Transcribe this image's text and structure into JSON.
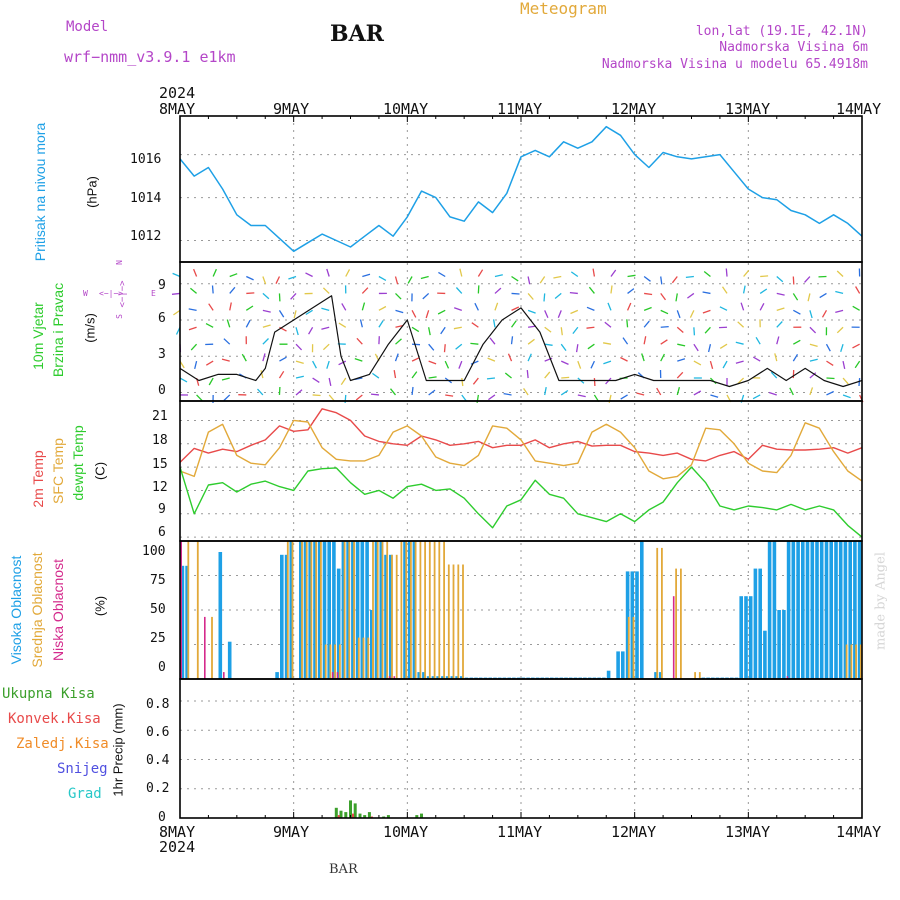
{
  "header": {
    "model_label": "Model",
    "model_name": "wrf−nmm_v3.9.1  e1km",
    "station": "BAR",
    "product": "Meteogram",
    "coords": "lon,lat (19.1E, 42.1N)",
    "elevation": "Nadmorska Visina 6m",
    "model_elevation": "Nadmorska Visina u modelu 65.4918m",
    "footer_station": "BAR",
    "credit": "made by Angel"
  },
  "time_axis": {
    "year": "2024",
    "days": [
      "8MAY",
      "9MAY",
      "10MAY",
      "11MAY",
      "12MAY",
      "13MAY",
      "14MAY"
    ]
  },
  "colors": {
    "pressure": "#1ea0e6",
    "temp2m": "#e84a4a",
    "sfc_temp": "#e2a93a",
    "dewpoint": "#2ecc2e",
    "cloud_high": "#1ea0e6",
    "cloud_mid": "#e2a93a",
    "cloud_low": "#d42a8c",
    "precip_total": "#3ca02c",
    "precip_conv": "#e84a4a",
    "precip_frozen": "#f08c28",
    "snow": "#5050e0",
    "graupel": "#28c8c8",
    "wind_label": "#2ecc2e",
    "compass": "#b446c8",
    "header_purple": "#b446c8",
    "header_orange": "#e2a93a"
  },
  "panels": {
    "pressure": {
      "label": "Pritisak na nivou mora",
      "unit": "(hPa)",
      "ticks": [
        "1012",
        "1014",
        "1016"
      ]
    },
    "wind": {
      "label_line1": "10m Vjetar",
      "label_line2": "Brzina i Pravac",
      "unit": "(m/s)",
      "ticks": [
        "0",
        "3",
        "6",
        "9"
      ],
      "compass_n": "N",
      "compass_arrow": "<−|−>",
      "compass_w": "W",
      "compass_e": "E",
      "compass_s": "S"
    },
    "temperature": {
      "label_2m": "2m Temp",
      "label_sfc": "SFC Temp",
      "label_dew": "dewpt Temp",
      "unit": "(C)",
      "ticks": [
        "6",
        "9",
        "12",
        "15",
        "18",
        "21"
      ]
    },
    "clouds": {
      "label_high": "Visoka Oblacnost",
      "label_mid": "Srednja Oblacnost",
      "label_low": "Niska Oblacnost",
      "unit": "(%)",
      "ticks": [
        "0",
        "25",
        "50",
        "75",
        "100"
      ]
    },
    "precip": {
      "legend": [
        "Ukupna Kisa",
        "Konvek.Kisa",
        "Zaledj.Kisa",
        "Snijeg",
        "Grad"
      ],
      "unit": "1hr Precip (mm)",
      "ticks": [
        "0",
        "0.2",
        "0.4",
        "0.6",
        "0.8"
      ]
    }
  },
  "chart_data": {
    "type": "line",
    "x_unit": "hours since 8MAY 00Z",
    "x_range": [
      0,
      144
    ],
    "pressure": {
      "ylim": [
        1011,
        1017.8
      ],
      "x": [
        0,
        3,
        6,
        9,
        12,
        15,
        18,
        21,
        24,
        27,
        30,
        33,
        36,
        39,
        42,
        45,
        48,
        51,
        54,
        57,
        60,
        63,
        66,
        69,
        72,
        75,
        78,
        81,
        84,
        87,
        90,
        93,
        96,
        99,
        102,
        105,
        108,
        111,
        114,
        117,
        120,
        123,
        126,
        129,
        132,
        135,
        138,
        141,
        144
      ],
      "values": [
        1015.8,
        1015.0,
        1015.4,
        1014.4,
        1013.2,
        1012.7,
        1012.7,
        1012.1,
        1011.5,
        1011.9,
        1012.3,
        1012.0,
        1011.7,
        1012.2,
        1012.7,
        1012.2,
        1013.1,
        1014.3,
        1014.0,
        1013.1,
        1012.9,
        1013.8,
        1013.3,
        1014.2,
        1015.9,
        1016.2,
        1015.9,
        1016.6,
        1016.3,
        1016.6,
        1017.3,
        1016.9,
        1016.0,
        1015.4,
        1016.1,
        1015.9,
        1015.8,
        1015.9,
        1016.0,
        1015.2,
        1014.4,
        1014.0,
        1013.9,
        1013.4,
        1013.2,
        1012.8,
        1013.2,
        1012.8,
        1012.2
      ]
    },
    "wind": {
      "ylim": [
        -0.7,
        10.8
      ],
      "x": [
        0,
        4,
        8,
        12,
        16,
        18,
        20,
        24,
        28,
        32,
        34,
        36,
        40,
        44,
        48,
        52,
        56,
        60,
        64,
        68,
        72,
        76,
        80,
        84,
        88,
        92,
        96,
        100,
        104,
        108,
        112,
        116,
        120,
        124,
        128,
        132,
        136,
        140,
        144
      ],
      "speed": [
        2,
        1,
        1.5,
        1.5,
        1,
        2,
        5,
        6,
        7,
        8,
        3,
        1,
        1.5,
        4,
        6,
        1,
        1,
        1,
        4,
        6,
        7,
        5,
        1,
        1,
        1,
        1,
        1.5,
        1,
        1,
        1,
        1,
        0.5,
        1,
        2,
        1,
        2,
        1,
        0.5,
        1
      ]
    },
    "temperature": {
      "ylim": [
        5.5,
        23.5
      ],
      "x": [
        0,
        3,
        6,
        9,
        12,
        15,
        18,
        21,
        24,
        27,
        30,
        33,
        36,
        39,
        42,
        45,
        48,
        51,
        54,
        57,
        60,
        63,
        66,
        69,
        72,
        75,
        78,
        81,
        84,
        87,
        90,
        93,
        96,
        99,
        102,
        105,
        108,
        111,
        114,
        117,
        120,
        123,
        126,
        129,
        132,
        135,
        138,
        141,
        144
      ],
      "t2m": [
        15.6,
        17.4,
        16.8,
        17.3,
        17.0,
        17.8,
        18.5,
        20.3,
        19.6,
        19.8,
        22.5,
        22.0,
        21.0,
        19.0,
        18.3,
        18.0,
        17.8,
        19.0,
        18.5,
        17.8,
        18.0,
        18.3,
        17.5,
        17.8,
        17.8,
        18.5,
        17.5,
        18.0,
        18.3,
        17.7,
        17.8,
        17.8,
        17.0,
        16.8,
        16.5,
        16.8,
        16.0,
        15.8,
        16.5,
        17.0,
        16.0,
        17.8,
        17.3,
        17.2,
        17.2,
        17.3,
        17.5,
        16.8,
        17.5
      ],
      "sfc": [
        14.5,
        13.8,
        19.5,
        20.5,
        16.5,
        15.5,
        15.3,
        17.5,
        21.0,
        20.8,
        17.5,
        16.0,
        15.8,
        15.8,
        16.5,
        19.5,
        20.3,
        19.0,
        16.3,
        15.5,
        15.2,
        16.5,
        20.3,
        20.0,
        18.5,
        15.8,
        15.5,
        15.2,
        15.5,
        19.5,
        20.5,
        19.5,
        17.5,
        14.5,
        13.5,
        13.8,
        15.3,
        20.0,
        19.8,
        18.0,
        15.5,
        14.5,
        14.3,
        16.5,
        20.7,
        20.0,
        17.0,
        14.5,
        13.2
      ],
      "dew": [
        15.0,
        9.0,
        12.7,
        13.0,
        11.8,
        12.8,
        13.2,
        12.5,
        12.0,
        14.5,
        14.8,
        14.9,
        13.0,
        11.5,
        12.0,
        11.0,
        12.5,
        12.8,
        12.0,
        12.2,
        11.0,
        9.0,
        7.2,
        10.0,
        10.8,
        13.3,
        11.5,
        11.0,
        9.0,
        8.5,
        8.0,
        9.0,
        8.0,
        9.5,
        10.5,
        13.0,
        15.0,
        13.0,
        10.0,
        9.5,
        10.0,
        9.8,
        9.5,
        10.2,
        9.5,
        10.0,
        9.5,
        7.5,
        6.0
      ]
    },
    "clouds": {
      "ylim": [
        0,
        100
      ],
      "high_segments": [
        [
          0,
          2,
          82
        ],
        [
          8,
          9,
          92
        ],
        [
          10,
          11,
          27
        ],
        [
          20,
          21,
          5
        ],
        [
          21,
          23,
          90
        ],
        [
          23,
          24,
          100
        ],
        [
          25,
          33,
          100
        ],
        [
          33,
          34,
          80
        ],
        [
          34,
          40,
          100
        ],
        [
          40,
          41,
          50
        ],
        [
          41,
          43,
          100
        ],
        [
          43,
          45,
          90
        ],
        [
          47,
          50,
          100
        ],
        [
          50,
          52,
          5
        ],
        [
          52,
          60,
          2
        ],
        [
          60,
          90,
          1
        ],
        [
          90,
          91,
          6
        ],
        [
          92,
          94,
          20
        ],
        [
          94,
          97,
          78
        ],
        [
          97,
          98,
          100
        ],
        [
          100,
          102,
          5
        ],
        [
          110,
          118,
          1
        ],
        [
          118,
          121,
          60
        ],
        [
          121,
          123,
          80
        ],
        [
          123,
          124,
          35
        ],
        [
          124,
          126,
          100
        ],
        [
          126,
          128,
          50
        ],
        [
          128,
          144,
          100
        ]
      ],
      "mid_segments": [
        [
          1,
          2,
          100
        ],
        [
          3,
          4,
          100
        ],
        [
          6,
          7,
          45
        ],
        [
          22,
          24,
          100
        ],
        [
          25,
          30,
          100
        ],
        [
          30,
          34,
          25
        ],
        [
          34,
          37,
          100
        ],
        [
          37,
          41,
          30
        ],
        [
          40,
          44,
          100
        ],
        [
          44,
          46,
          90
        ],
        [
          46,
          50,
          100
        ],
        [
          50,
          56,
          100
        ],
        [
          56,
          60,
          83
        ],
        [
          94,
          96,
          45
        ],
        [
          100,
          102,
          95
        ],
        [
          104,
          106,
          80
        ],
        [
          108,
          110,
          5
        ],
        [
          140,
          144,
          25
        ]
      ],
      "low_segments": [
        [
          0,
          1,
          100
        ],
        [
          5,
          6,
          45
        ],
        [
          9,
          10,
          5
        ],
        [
          32,
          34,
          5
        ],
        [
          44,
          46,
          2
        ],
        [
          104,
          105,
          60
        ],
        [
          128,
          129,
          2
        ]
      ]
    },
    "precip": {
      "ylim": [
        0,
        0.95
      ],
      "total": [
        [
          33,
          0.07
        ],
        [
          34,
          0.05
        ],
        [
          35,
          0.04
        ],
        [
          36,
          0.12
        ],
        [
          37,
          0.1
        ],
        [
          38,
          0.03
        ],
        [
          39,
          0.02
        ],
        [
          40,
          0.04
        ],
        [
          43,
          0.01
        ],
        [
          44,
          0.02
        ],
        [
          50,
          0.02
        ],
        [
          51,
          0.03
        ]
      ],
      "convective": [
        [
          33,
          0.02
        ],
        [
          36,
          0.03
        ],
        [
          40,
          0.01
        ]
      ]
    }
  }
}
